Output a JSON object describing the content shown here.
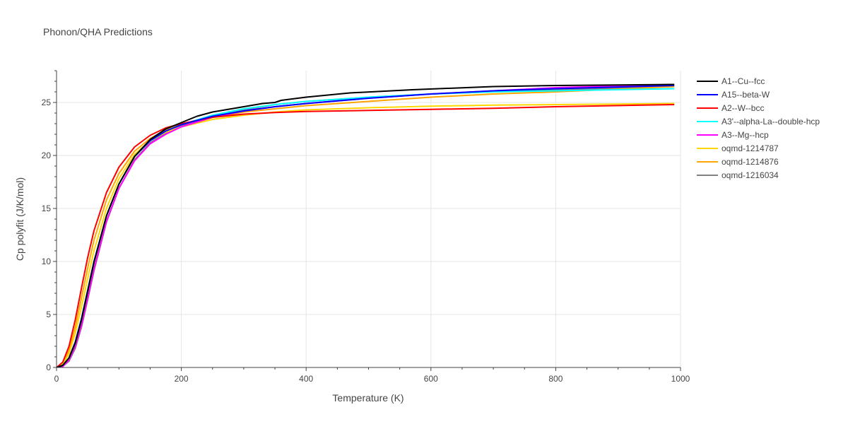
{
  "chart_data": {
    "type": "line",
    "title": "Phonon/QHA Predictions",
    "xlabel": "Temperature (K)",
    "ylabel": "Cp polyfit (J/K/mol)",
    "xlim": [
      0,
      1000
    ],
    "ylim": [
      0,
      28
    ],
    "xticks": [
      0,
      200,
      400,
      600,
      800,
      1000
    ],
    "yticks": [
      0,
      5,
      10,
      15,
      20,
      25
    ],
    "grid": true,
    "legend_position": "right",
    "series": [
      {
        "name": "A1--Cu--fcc",
        "color": "#000000",
        "x": [
          0,
          10,
          20,
          30,
          40,
          50,
          60,
          80,
          100,
          125,
          150,
          175,
          200,
          225,
          250,
          300,
          330,
          350,
          360,
          400,
          470,
          570,
          700,
          800,
          990
        ],
        "y": [
          0,
          0.2,
          0.9,
          2.3,
          4.5,
          7.2,
          9.9,
          14.3,
          17.3,
          19.9,
          21.5,
          22.5,
          23.1,
          23.7,
          24.1,
          24.6,
          24.9,
          25.0,
          25.2,
          25.5,
          25.9,
          26.2,
          26.5,
          26.6,
          26.7
        ]
      },
      {
        "name": "A15--beta-W",
        "color": "#0000ff",
        "x": [
          0,
          10,
          20,
          30,
          40,
          50,
          60,
          80,
          100,
          125,
          150,
          175,
          200,
          250,
          300,
          350,
          400,
          500,
          600,
          700,
          800,
          990
        ],
        "y": [
          0,
          0.2,
          0.9,
          2.4,
          4.6,
          7.3,
          10.0,
          14.3,
          17.3,
          19.9,
          21.4,
          22.3,
          22.9,
          23.7,
          24.2,
          24.6,
          24.9,
          25.4,
          25.8,
          26.1,
          26.3,
          26.6
        ]
      },
      {
        "name": "A2--W--bcc",
        "color": "#ff0000",
        "x": [
          0,
          10,
          20,
          30,
          40,
          50,
          60,
          80,
          100,
          125,
          150,
          175,
          200,
          225,
          250,
          300,
          350,
          400,
          500,
          600,
          700,
          800,
          990
        ],
        "y": [
          0,
          0.5,
          2.0,
          4.5,
          7.5,
          10.4,
          12.9,
          16.5,
          18.9,
          20.8,
          21.9,
          22.6,
          23.0,
          23.3,
          23.6,
          23.9,
          24.05,
          24.15,
          24.25,
          24.35,
          24.45,
          24.6,
          24.8
        ]
      },
      {
        "name": "A3'--alpha-La--double-hcp",
        "color": "#00ffff",
        "x": [
          0,
          10,
          20,
          30,
          40,
          50,
          60,
          80,
          100,
          125,
          150,
          175,
          200,
          250,
          300,
          350,
          400,
          500,
          600,
          700,
          800,
          990
        ],
        "y": [
          0,
          0.2,
          0.9,
          2.4,
          4.6,
          7.3,
          10.0,
          14.3,
          17.3,
          19.9,
          21.4,
          22.3,
          22.9,
          23.8,
          24.4,
          24.8,
          25.1,
          25.5,
          25.8,
          26.0,
          26.1,
          26.3
        ]
      },
      {
        "name": "A3--Mg--hcp",
        "color": "#ff00ff",
        "x": [
          0,
          10,
          20,
          30,
          40,
          50,
          60,
          80,
          100,
          125,
          150,
          175,
          200,
          250,
          300,
          350,
          400,
          500,
          600,
          700,
          800,
          990
        ],
        "y": [
          0,
          0.1,
          0.7,
          2.0,
          4.0,
          6.6,
          9.3,
          13.8,
          16.9,
          19.5,
          21.1,
          22.0,
          22.7,
          23.6,
          24.2,
          24.6,
          24.9,
          25.4,
          25.8,
          26.1,
          26.4,
          26.7
        ]
      },
      {
        "name": "oqmd-1214787",
        "color": "#ffd700",
        "x": [
          0,
          10,
          20,
          30,
          40,
          50,
          60,
          80,
          100,
          125,
          150,
          175,
          200,
          250,
          300,
          350,
          400,
          500,
          600,
          700,
          800,
          990
        ],
        "y": [
          0,
          0.3,
          1.3,
          3.2,
          5.7,
          8.4,
          11.0,
          15.0,
          17.8,
          20.1,
          21.4,
          22.2,
          22.7,
          23.4,
          23.8,
          24.1,
          24.3,
          24.5,
          24.65,
          24.75,
          24.8,
          24.9
        ]
      },
      {
        "name": "oqmd-1214876",
        "color": "#ffa500",
        "x": [
          0,
          10,
          20,
          30,
          40,
          50,
          60,
          80,
          100,
          125,
          150,
          175,
          200,
          250,
          300,
          350,
          400,
          500,
          600,
          700,
          800,
          990
        ],
        "y": [
          0,
          0.4,
          1.6,
          3.8,
          6.6,
          9.4,
          12.0,
          15.8,
          18.3,
          20.4,
          21.6,
          22.4,
          22.9,
          23.6,
          24.1,
          24.4,
          24.7,
          25.1,
          25.5,
          25.8,
          26.0,
          26.5
        ]
      },
      {
        "name": "oqmd-1216034",
        "color": "#808080",
        "x": [
          0,
          10,
          20,
          30,
          40,
          50,
          60,
          80,
          100,
          125,
          150,
          175,
          200,
          250,
          300,
          350,
          400,
          500,
          600,
          700,
          800,
          990
        ],
        "y": [
          0,
          0.1,
          0.6,
          1.8,
          3.8,
          6.4,
          9.1,
          13.7,
          16.9,
          19.6,
          21.2,
          22.1,
          22.8,
          23.7,
          24.3,
          24.8,
          25.1,
          25.5,
          25.8,
          26.0,
          26.2,
          26.5
        ]
      }
    ]
  }
}
